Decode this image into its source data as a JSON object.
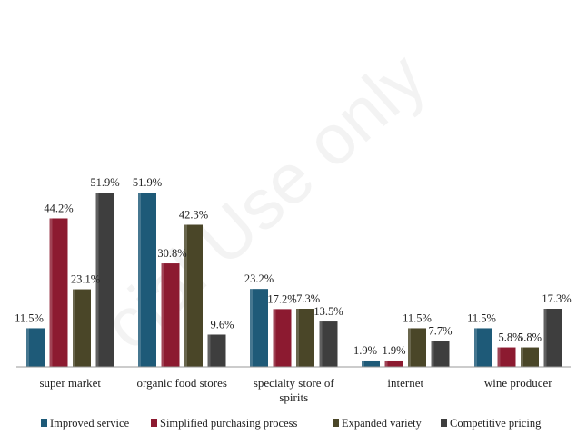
{
  "watermark": "cial Use only",
  "chart_data": {
    "type": "bar",
    "categories": [
      "super market",
      "organic food stores",
      "specialty store of spirits",
      "internet",
      "wine producer"
    ],
    "series": [
      {
        "name": "Improved service",
        "color": "#1e5a78",
        "values": [
          11.5,
          51.9,
          23.2,
          1.9,
          11.5
        ],
        "labels": [
          "11.5%",
          "51.9%",
          "23.2%",
          "1.9%",
          "11.5%"
        ]
      },
      {
        "name": "Simplified purchasing process",
        "color": "#8c1a30",
        "values": [
          44.2,
          30.8,
          17.2,
          1.9,
          5.8
        ],
        "labels": [
          "44.2%",
          "30.8%",
          "17.2%",
          "1.9%",
          "5.8%"
        ]
      },
      {
        "name": "Expanded variety",
        "color": "#4a4628",
        "values": [
          23.1,
          42.3,
          17.3,
          11.5,
          5.8
        ],
        "labels": [
          "23.1%",
          "42.3%",
          "17.3%",
          "11.5%",
          "5.8%"
        ]
      },
      {
        "name": "Competitive pricing",
        "color": "#3e3e3e",
        "values": [
          51.9,
          9.6,
          13.5,
          7.7,
          17.3
        ],
        "labels": [
          "51.9%",
          "9.6%",
          "13.5%",
          "7.7%",
          "17.3%"
        ]
      }
    ],
    "ylim": [
      0,
      55
    ],
    "grid": false,
    "legend": "bottom",
    "title": "",
    "xlabel": "",
    "ylabel": ""
  }
}
